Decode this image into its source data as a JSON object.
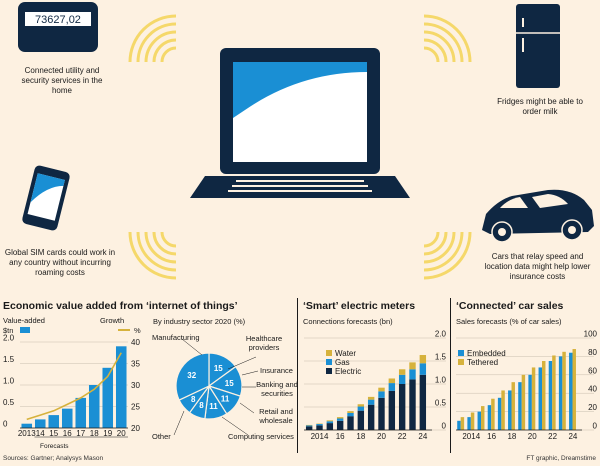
{
  "illustration": {
    "meter_reading": "73627,02",
    "captions": {
      "utility": "Connected utility and security services in the home",
      "fridge": "Fridges might be able to order milk",
      "sim": "Global SIM cards could work in any country without incurring roaming costs",
      "car": "Cars that relay speed and location data might help lower insurance costs"
    },
    "icons": [
      "utility-meter-icon",
      "fridge-icon",
      "laptop-icon",
      "smartphone-icon",
      "car-icon",
      "signal-waves-icon"
    ]
  },
  "colors": {
    "background": "#fdf1e1",
    "navy": "#0f2742",
    "blue": "#1a8fd4",
    "gold": "#d6b23c",
    "light_blue": "#8fcfe8",
    "wave": "#f5d86a"
  },
  "panel1": {
    "title": "Economic value added from ‘internet of things’",
    "left_label": "Value-added",
    "left_unit": "$tn",
    "right_label": "Growth",
    "right_unit": "%",
    "forecasts_label": "Forecasts"
  },
  "panel2": {
    "subtitle": "By industry sector 2020 (%)",
    "labels": {
      "manufacturing": "Manufacturing",
      "healthcare": "Healthcare providers",
      "insurance": "Insurance",
      "banking": "Banking and securities",
      "retail": "Retail and wholesale",
      "computing": "Computing services",
      "other": "Other"
    }
  },
  "panel3": {
    "title": "‘Smart’ electric meters",
    "subtitle": "Connections forecasts (bn)"
  },
  "panel4": {
    "title": "‘Connected’ car sales",
    "subtitle": "Sales forecasts (% of car sales)"
  },
  "footer": {
    "sources": "Sources: Gartner; Analysys Mason",
    "credit": "FT graphic, Dreamstime"
  },
  "chart_data": [
    {
      "type": "bar",
      "categories": [
        "2013",
        "14",
        "15",
        "16",
        "17",
        "18",
        "19",
        "20"
      ],
      "series": [
        {
          "name": "$tn",
          "values": [
            0.1,
            0.2,
            0.3,
            0.45,
            0.7,
            1.0,
            1.4,
            1.9
          ],
          "axis": "left"
        },
        {
          "name": "%",
          "values": [
            22,
            23,
            24,
            25.5,
            27,
            29,
            32,
            37.5
          ],
          "axis": "right",
          "type": "line"
        }
      ],
      "ylim": [
        0,
        2.0
      ],
      "yticks": [
        "0",
        "0.5",
        "1.0",
        "1.5",
        "2.0"
      ],
      "ylim_right": [
        20,
        40
      ],
      "yticks_right": [
        "20",
        "25",
        "30",
        "35",
        "40"
      ],
      "forecast_from": "14"
    },
    {
      "type": "pie",
      "categories": [
        "Manufacturing",
        "Healthcare providers",
        "Insurance",
        "Banking and securities",
        "Retail and wholesale",
        "Computing services",
        "Other"
      ],
      "values": [
        15,
        15,
        11,
        11,
        8,
        8,
        32
      ]
    },
    {
      "type": "bar",
      "stacked": true,
      "categories": [
        "2013",
        "2014",
        "2015",
        "2016",
        "2017",
        "2018",
        "2019",
        "2020",
        "2021",
        "2022",
        "2023",
        "2024"
      ],
      "xticks": [
        "2014",
        "16",
        "18",
        "20",
        "22",
        "24"
      ],
      "series": [
        {
          "name": "Electric",
          "values": [
            0.08,
            0.1,
            0.15,
            0.2,
            0.3,
            0.42,
            0.55,
            0.7,
            0.85,
            1.0,
            1.1,
            1.2
          ]
        },
        {
          "name": "Gas",
          "values": [
            0.02,
            0.03,
            0.04,
            0.05,
            0.07,
            0.09,
            0.11,
            0.14,
            0.17,
            0.2,
            0.22,
            0.25
          ]
        },
        {
          "name": "Water",
          "values": [
            0.01,
            0.01,
            0.02,
            0.03,
            0.04,
            0.05,
            0.06,
            0.08,
            0.1,
            0.12,
            0.15,
            0.18
          ]
        }
      ],
      "ylim": [
        0,
        2.0
      ],
      "yticks": [
        "0",
        "0.5",
        "1.0",
        "1.5",
        "2.0"
      ],
      "legend": "top-left"
    },
    {
      "type": "bar",
      "categories": [
        "2013",
        "2014",
        "2015",
        "2016",
        "2017",
        "2018",
        "2019",
        "2020",
        "2021",
        "2022",
        "2023",
        "2024"
      ],
      "xticks": [
        "2014",
        "16",
        "18",
        "20",
        "22",
        "24"
      ],
      "series": [
        {
          "name": "Embedded",
          "values": [
            10,
            14,
            20,
            27,
            35,
            43,
            52,
            60,
            68,
            75,
            80,
            84
          ]
        },
        {
          "name": "Tethered",
          "values": [
            14,
            19,
            26,
            34,
            43,
            52,
            60,
            68,
            75,
            81,
            85,
            88
          ]
        }
      ],
      "ylim": [
        0,
        100
      ],
      "yticks": [
        "0",
        "20",
        "40",
        "60",
        "80",
        "100"
      ],
      "legend": "top-left"
    }
  ]
}
